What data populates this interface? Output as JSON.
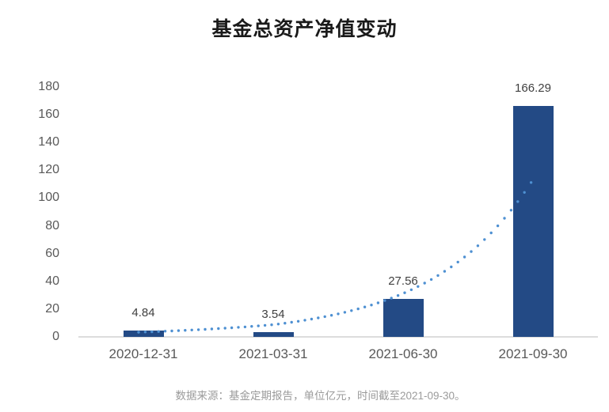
{
  "chart_data": {
    "type": "bar",
    "title": "基金总资产净值变动",
    "categories": [
      "2020-12-31",
      "2021-03-31",
      "2021-06-30",
      "2021-09-30"
    ],
    "values": [
      4.84,
      3.54,
      27.56,
      166.29
    ],
    "value_labels": [
      "4.84",
      "3.54",
      "27.56",
      "166.29"
    ],
    "xlabel": "",
    "ylabel": "",
    "ylim": [
      0,
      180
    ],
    "y_ticks": [
      0,
      20,
      40,
      60,
      80,
      100,
      120,
      140,
      160,
      180
    ],
    "grid": false,
    "legend_position": "none",
    "bar_color": "#234a85",
    "trendline": {
      "type": "exponential",
      "style": "dotted",
      "color": "#4e90d2",
      "values_at_categories": [
        3.5,
        8.8,
        31.3,
        113.3
      ]
    }
  },
  "footer": {
    "text": "数据来源：基金定期报告，单位亿元，时间截至2021-09-30。"
  },
  "colors": {
    "title": "#1a1a1a",
    "tick_label": "#595959",
    "value_label": "#404040",
    "axis_line": "#dcdcdc",
    "footer": "#9b9b9b",
    "background": "#ffffff"
  }
}
